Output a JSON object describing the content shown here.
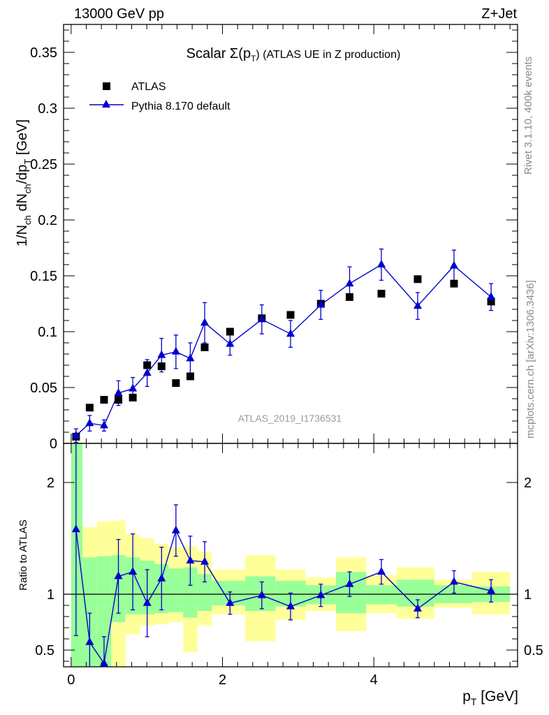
{
  "header": {
    "left": "13000 GeV pp",
    "right": "Z+Jet"
  },
  "side_labels": {
    "rivet": "Rivet 3.1.10,  400k events",
    "mcplots": "mcplots.cern.ch [arXiv:1306.3436]"
  },
  "watermark": "ATLAS_2019_I1736531",
  "colors": {
    "data": "#000000",
    "mc": "#0000cc",
    "band_inner": "#99ff99",
    "band_outer": "#ffff99"
  },
  "chart_data": [
    {
      "type": "line",
      "title_prefix": "Scalar Σ(p",
      "title_sub": "T",
      "title_suffix": ") (ATLAS UE in Z production)",
      "ylabel_parts": [
        "1/N",
        "ch",
        " dN",
        "ch",
        "/dp",
        "T",
        " [GeV]"
      ],
      "xlim": [
        -0.1,
        5.9
      ],
      "ylim": [
        0,
        0.375
      ],
      "yticks": [
        0,
        0.05,
        0.1,
        0.15,
        0.2,
        0.25,
        0.3,
        0.35
      ],
      "ytick_labels": [
        "0",
        "0.05",
        "0.1",
        "0.15",
        "0.2",
        "0.25",
        "0.3",
        "0.35"
      ],
      "legend": [
        "ATLAS",
        "Pythia 8.170 default"
      ],
      "legend_position": "top-left",
      "x": [
        0.065,
        0.245,
        0.435,
        0.625,
        0.815,
        1.005,
        1.195,
        1.385,
        1.575,
        1.765,
        2.1,
        2.52,
        2.9,
        3.3,
        3.68,
        4.1,
        4.58,
        5.06,
        5.55
      ],
      "series": [
        {
          "name": "ATLAS",
          "marker": "square",
          "values": [
            0.006,
            0.032,
            0.039,
            0.039,
            0.041,
            0.07,
            0.069,
            0.054,
            0.06,
            0.086,
            0.1,
            0.112,
            0.115,
            0.125,
            0.131,
            0.134,
            0.147,
            0.143,
            0.127
          ]
        },
        {
          "name": "Pythia 8.170 default",
          "marker": "triangle",
          "values": [
            0.007,
            0.018,
            0.016,
            0.045,
            0.049,
            0.063,
            0.079,
            0.082,
            0.076,
            0.108,
            0.089,
            0.111,
            0.098,
            0.124,
            0.143,
            0.16,
            0.123,
            0.159,
            0.131
          ],
          "errors": [
            0.006,
            0.007,
            0.005,
            0.011,
            0.01,
            0.012,
            0.015,
            0.015,
            0.014,
            0.018,
            0.01,
            0.013,
            0.012,
            0.013,
            0.015,
            0.014,
            0.012,
            0.014,
            0.012
          ]
        }
      ]
    },
    {
      "type": "line",
      "ylabel": "Ratio to ATLAS",
      "xlabel_main": "p",
      "xlabel_sub": "T",
      "xlabel_unit": " [GeV]",
      "xlim": [
        -0.1,
        5.9
      ],
      "ylim": [
        0.35,
        2.35
      ],
      "xticks": [
        0,
        2,
        4
      ],
      "xtick_labels": [
        "0",
        "2",
        "4"
      ],
      "yticks": [
        0.5,
        1,
        2
      ],
      "ytick_labels": [
        "0.5",
        "1",
        "2"
      ],
      "reference_line": 1,
      "bands": [
        {
          "x0": 0.0,
          "x1": 0.15,
          "inner": [
            0.35,
            2.35
          ],
          "outer": [
            0.35,
            2.35
          ]
        },
        {
          "x0": 0.15,
          "x1": 0.34,
          "inner": [
            0.35,
            1.33
          ],
          "outer": [
            0.35,
            1.6
          ]
        },
        {
          "x0": 0.34,
          "x1": 0.53,
          "inner": [
            0.35,
            1.34
          ],
          "outer": [
            0.35,
            1.65
          ]
        },
        {
          "x0": 0.53,
          "x1": 0.72,
          "inner": [
            0.75,
            1.35
          ],
          "outer": [
            0.35,
            1.66
          ]
        },
        {
          "x0": 0.72,
          "x1": 0.91,
          "inner": [
            0.82,
            1.33
          ],
          "outer": [
            0.64,
            1.54
          ]
        },
        {
          "x0": 0.91,
          "x1": 1.1,
          "inner": [
            0.82,
            1.3
          ],
          "outer": [
            0.72,
            1.5
          ]
        },
        {
          "x0": 1.1,
          "x1": 1.29,
          "inner": [
            0.83,
            1.27
          ],
          "outer": [
            0.73,
            1.45
          ]
        },
        {
          "x0": 1.29,
          "x1": 1.48,
          "inner": [
            0.84,
            1.23
          ],
          "outer": [
            0.75,
            1.42
          ]
        },
        {
          "x0": 1.48,
          "x1": 1.67,
          "inner": [
            0.79,
            1.24
          ],
          "outer": [
            0.48,
            1.43
          ]
        },
        {
          "x0": 1.67,
          "x1": 1.86,
          "inner": [
            0.85,
            1.18
          ],
          "outer": [
            0.72,
            1.38
          ]
        },
        {
          "x0": 1.86,
          "x1": 2.3,
          "inner": [
            0.9,
            1.12
          ],
          "outer": [
            0.82,
            1.22
          ]
        },
        {
          "x0": 2.3,
          "x1": 2.7,
          "inner": [
            0.85,
            1.16
          ],
          "outer": [
            0.58,
            1.35
          ]
        },
        {
          "x0": 2.7,
          "x1": 3.1,
          "inner": [
            0.89,
            1.12
          ],
          "outer": [
            0.77,
            1.22
          ]
        },
        {
          "x0": 3.1,
          "x1": 3.5,
          "inner": [
            0.91,
            1.08
          ],
          "outer": [
            0.85,
            1.15
          ]
        },
        {
          "x0": 3.5,
          "x1": 3.9,
          "inner": [
            0.83,
            1.2
          ],
          "outer": [
            0.67,
            1.33
          ]
        },
        {
          "x0": 3.9,
          "x1": 4.3,
          "inner": [
            0.91,
            1.08
          ],
          "outer": [
            0.83,
            1.17
          ]
        },
        {
          "x0": 4.3,
          "x1": 4.8,
          "inner": [
            0.89,
            1.13
          ],
          "outer": [
            0.78,
            1.24
          ]
        },
        {
          "x0": 4.8,
          "x1": 5.3,
          "inner": [
            0.92,
            1.08
          ],
          "outer": [
            0.88,
            1.13
          ]
        },
        {
          "x0": 5.3,
          "x1": 5.8,
          "inner": [
            0.93,
            1.07
          ],
          "outer": [
            0.82,
            1.2
          ]
        }
      ],
      "series": [
        {
          "name": "Pythia 8.170 default",
          "values": [
            1.58,
            0.57,
            0.38,
            1.16,
            1.2,
            0.92,
            1.14,
            1.57,
            1.3,
            1.29,
            0.92,
            0.99,
            0.89,
            0.99,
            1.09,
            1.2,
            0.87,
            1.11,
            1.03
          ],
          "errors": [
            0.95,
            0.26,
            0.24,
            0.33,
            0.34,
            0.3,
            0.28,
            0.23,
            0.22,
            0.18,
            0.1,
            0.12,
            0.12,
            0.1,
            0.11,
            0.11,
            0.08,
            0.1,
            0.1
          ]
        }
      ]
    }
  ]
}
